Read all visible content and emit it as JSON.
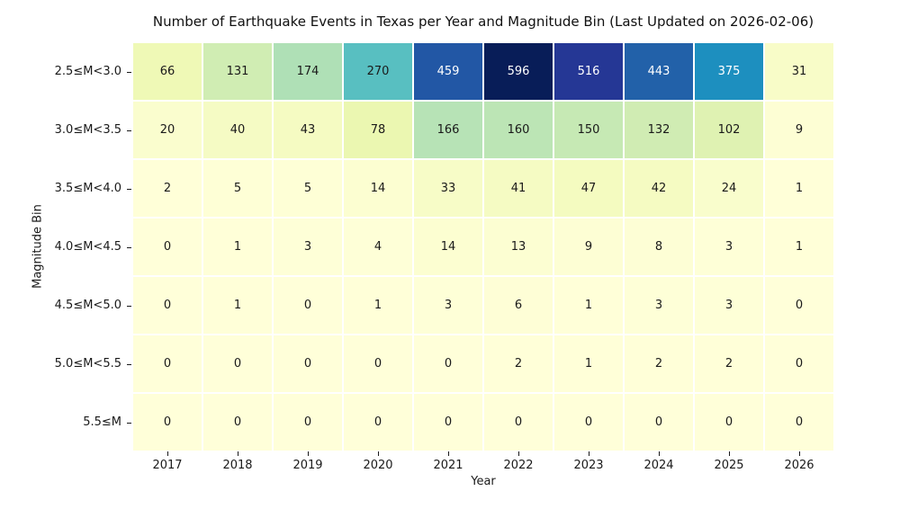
{
  "chart_data": {
    "type": "heatmap",
    "title": "Number of Earthquake Events in Texas per Year and Magnitude Bin (Last Updated on 2026-02-06)",
    "xlabel": "Year",
    "ylabel": "Magnitude Bin",
    "x_categories": [
      "2017",
      "2018",
      "2019",
      "2020",
      "2021",
      "2022",
      "2023",
      "2024",
      "2025",
      "2026"
    ],
    "y_categories": [
      "2.5≤M<3.0",
      "3.0≤M<3.5",
      "3.5≤M<4.0",
      "4.0≤M<4.5",
      "4.5≤M<5.0",
      "5.0≤M<5.5",
      "5.5≤M"
    ],
    "values": [
      [
        66,
        131,
        174,
        270,
        459,
        596,
        516,
        443,
        375,
        31
      ],
      [
        20,
        40,
        43,
        78,
        166,
        160,
        150,
        132,
        102,
        9
      ],
      [
        2,
        5,
        5,
        14,
        33,
        41,
        47,
        42,
        24,
        1
      ],
      [
        0,
        1,
        3,
        4,
        14,
        13,
        9,
        8,
        3,
        1
      ],
      [
        0,
        1,
        0,
        1,
        3,
        6,
        1,
        3,
        3,
        0
      ],
      [
        0,
        0,
        0,
        0,
        0,
        2,
        1,
        2,
        2,
        0
      ],
      [
        0,
        0,
        0,
        0,
        0,
        0,
        0,
        0,
        0,
        0
      ]
    ],
    "vmin": 0,
    "vmax": 596,
    "grid": false,
    "legend_position": "none",
    "colormap": {
      "name": "YlGnBu",
      "stops": [
        "#ffffd9",
        "#edf8b1",
        "#c7e9b4",
        "#7fcdbb",
        "#41b6c4",
        "#1d91c0",
        "#225ea8",
        "#253494",
        "#081d58"
      ]
    },
    "cell_line_color": "#ffffff",
    "annotation_color_dark": "#1a1a1a",
    "annotation_color_light": "#ffffff"
  }
}
